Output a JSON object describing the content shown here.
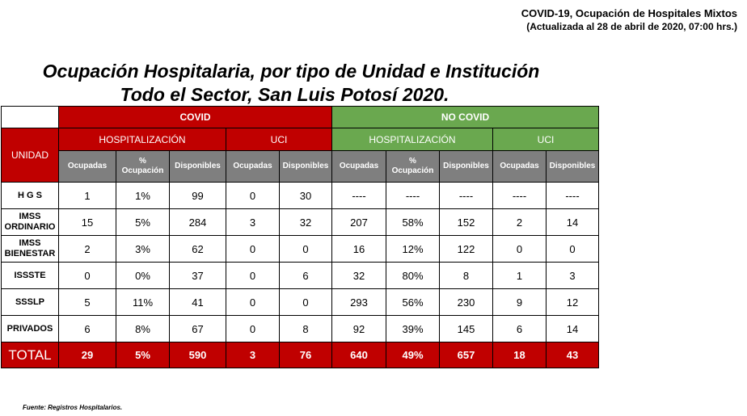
{
  "header": {
    "title": "COVID-19, Ocupación de Hospitales Mixtos",
    "subtitle": "(Actualizada al 28 de abril de 2020, 07:00 hrs.)"
  },
  "main_title": {
    "line1": "Ocupación Hospitalaria, por tipo de Unidad e Institución",
    "line2": "Todo el Sector, San Luis Potosí 2020."
  },
  "table": {
    "unidad_label": "UNIDAD",
    "group_covid": "COVID",
    "group_nocovid": "NO COVID",
    "sub_hosp": "HOSPITALIZACIÓN",
    "sub_uci": "UCI",
    "col_ocupadas": "Ocupadas",
    "col_pct_line1": "%",
    "col_pct_line2": "Ocupación",
    "col_disponibles": "Disponibles",
    "rows": [
      {
        "label1": "H G S",
        "label2": "",
        "values": [
          "1",
          "1%",
          "99",
          "0",
          "30",
          "----",
          "----",
          "----",
          "----",
          "----"
        ]
      },
      {
        "label1": "IMSS",
        "label2": "ORDINARIO",
        "values": [
          "15",
          "5%",
          "284",
          "3",
          "32",
          "207",
          "58%",
          "152",
          "2",
          "14"
        ]
      },
      {
        "label1": "IMSS",
        "label2": "BIENESTAR",
        "values": [
          "2",
          "3%",
          "62",
          "0",
          "0",
          "16",
          "12%",
          "122",
          "0",
          "0"
        ]
      },
      {
        "label1": "ISSSTE",
        "label2": "",
        "values": [
          "0",
          "0%",
          "37",
          "0",
          "6",
          "32",
          "80%",
          "8",
          "1",
          "3"
        ]
      },
      {
        "label1": "SSSLP",
        "label2": "",
        "values": [
          "5",
          "11%",
          "41",
          "0",
          "0",
          "293",
          "56%",
          "230",
          "9",
          "12"
        ]
      },
      {
        "label1": "PRIVADOS",
        "label2": "",
        "values": [
          "6",
          "8%",
          "67",
          "0",
          "8",
          "92",
          "39%",
          "145",
          "6",
          "14"
        ]
      }
    ],
    "total": {
      "label": "TOTAL",
      "values": [
        "29",
        "5%",
        "590",
        "3",
        "76",
        "640",
        "49%",
        "657",
        "18",
        "43"
      ]
    }
  },
  "footnote": "Fuente: Registros Hospitalarios.",
  "colors": {
    "covid_red": "#c00000",
    "nocovid_green": "#6aa84f",
    "header_gray": "#7f7f7f"
  }
}
